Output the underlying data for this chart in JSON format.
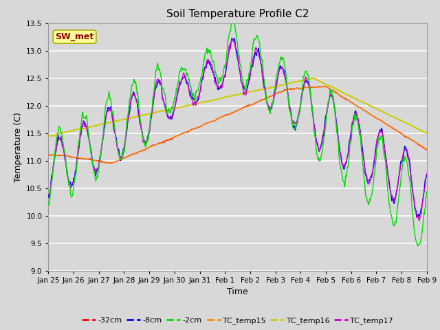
{
  "title": "Soil Temperature Profile C2",
  "xlabel": "Time",
  "ylabel": "Temperature (C)",
  "ylim": [
    9.0,
    13.5
  ],
  "yticks": [
    9.0,
    9.5,
    10.0,
    10.5,
    11.0,
    11.5,
    12.0,
    12.5,
    13.0,
    13.5
  ],
  "bg_color": "#d8d8d8",
  "plot_bg_color": "#d8d8d8",
  "grid_color": "#ffffff",
  "annotation_text": "SW_met",
  "annotation_color": "#8B0000",
  "annotation_bg": "#ffff99",
  "series_colors": {
    "-32cm": "#ff0000",
    "-8cm": "#0000ff",
    "-2cm": "#00dd00",
    "TC_temp15": "#ff8800",
    "TC_temp16": "#cccc00",
    "TC_temp17": "#cc00cc"
  },
  "tick_labels": [
    "Jan 25",
    "Jan 26",
    "Jan 27",
    "Jan 28",
    "Jan 29",
    "Jan 30",
    "Jan 31",
    "Feb 1",
    "Feb 2",
    "Feb 3",
    "Feb 4",
    "Feb 5",
    "Feb 6",
    "Feb 7",
    "Feb 8",
    "Feb 9"
  ],
  "tick_positions": [
    0,
    1,
    2,
    3,
    4,
    5,
    6,
    7,
    8,
    9,
    10,
    11,
    12,
    13,
    14,
    15
  ]
}
